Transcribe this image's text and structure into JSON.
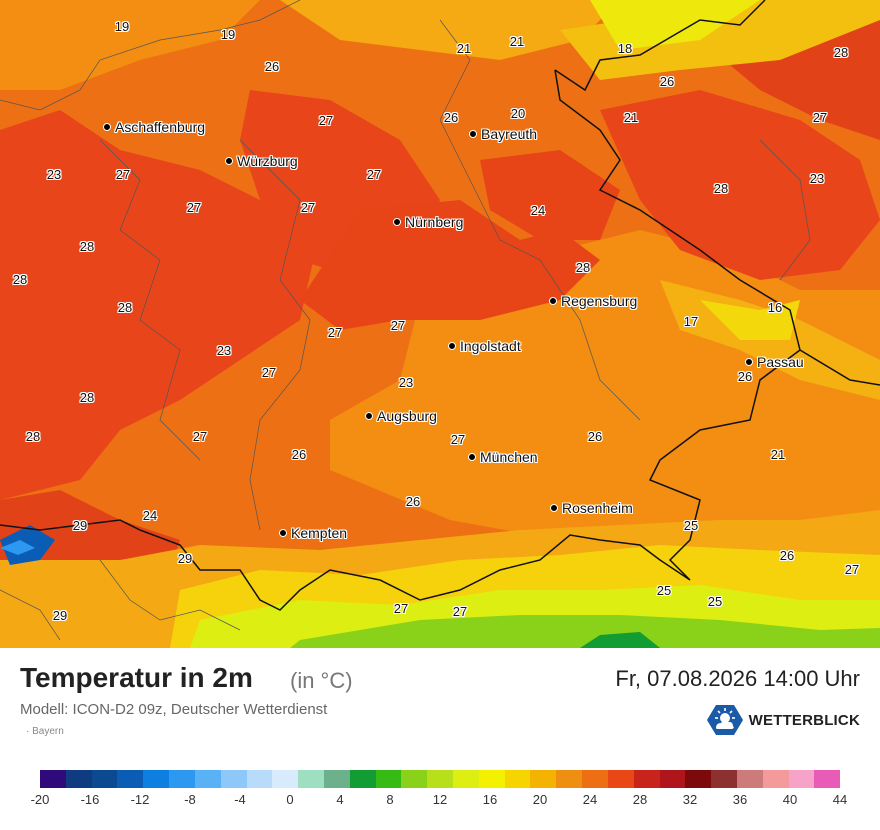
{
  "cities": [
    {
      "name": "Aschaffenburg"
    },
    {
      "name": "Würzburg"
    },
    {
      "name": "Bayreuth"
    },
    {
      "name": "Nürnberg"
    },
    {
      "name": "Regensburg"
    },
    {
      "name": "Ingolstadt"
    },
    {
      "name": "Passau"
    },
    {
      "name": "Augsburg"
    },
    {
      "name": "München"
    },
    {
      "name": "Rosenheim"
    },
    {
      "name": "Kempten"
    }
  ],
  "values": [
    "19",
    "19",
    "21",
    "21",
    "18",
    "28",
    "26",
    "26",
    "27",
    "26",
    "20",
    "21",
    "27",
    "23",
    "27",
    "27",
    "27",
    "24",
    "28",
    "28",
    "23",
    "28",
    "27",
    "27",
    "28",
    "16",
    "17",
    "28",
    "27",
    "23",
    "27",
    "23",
    "26",
    "28",
    "27",
    "28",
    "21",
    "26",
    "26",
    "27",
    "24",
    "29",
    "25",
    "29",
    "27",
    "27",
    "25",
    "25",
    "26",
    "27",
    "29"
  ],
  "footer": {
    "title": "Temperatur in 2m",
    "unit": "(in °C)",
    "date": "Fr, 07.08.2026 14:00 Uhr",
    "model": "Modell: ICON-D2 09z, Deutscher Wetterdienst",
    "region": "Bayern",
    "brand": "WETTERBLICK",
    "brand_icon": "sun-cloud-hexagon-icon"
  },
  "legend": {
    "colors": [
      "#2e0a7a",
      "#0f3b80",
      "#0b4a90",
      "#0a5cb5",
      "#0c7fe0",
      "#2d98f0",
      "#5ab2f6",
      "#8dc8f8",
      "#b8dbfa",
      "#d8ebfc",
      "#9edec1",
      "#6cb08c",
      "#129c34",
      "#35bb14",
      "#8ad21a",
      "#b8e01a",
      "#dcee12",
      "#f3f000",
      "#f6d400",
      "#f3b300",
      "#ef8f12",
      "#ee6e14",
      "#e94816",
      "#c8241c",
      "#b0151c",
      "#7c0a0a",
      "#8c3030",
      "#cc7a7a",
      "#f59a9a",
      "#f7a2c8",
      "#e85cb8"
    ],
    "ticks": [
      "-20",
      "-16",
      "-12",
      "-8",
      "-4",
      "0",
      "4",
      "8",
      "12",
      "16",
      "20",
      "24",
      "28",
      "32",
      "36",
      "40",
      "44"
    ]
  }
}
